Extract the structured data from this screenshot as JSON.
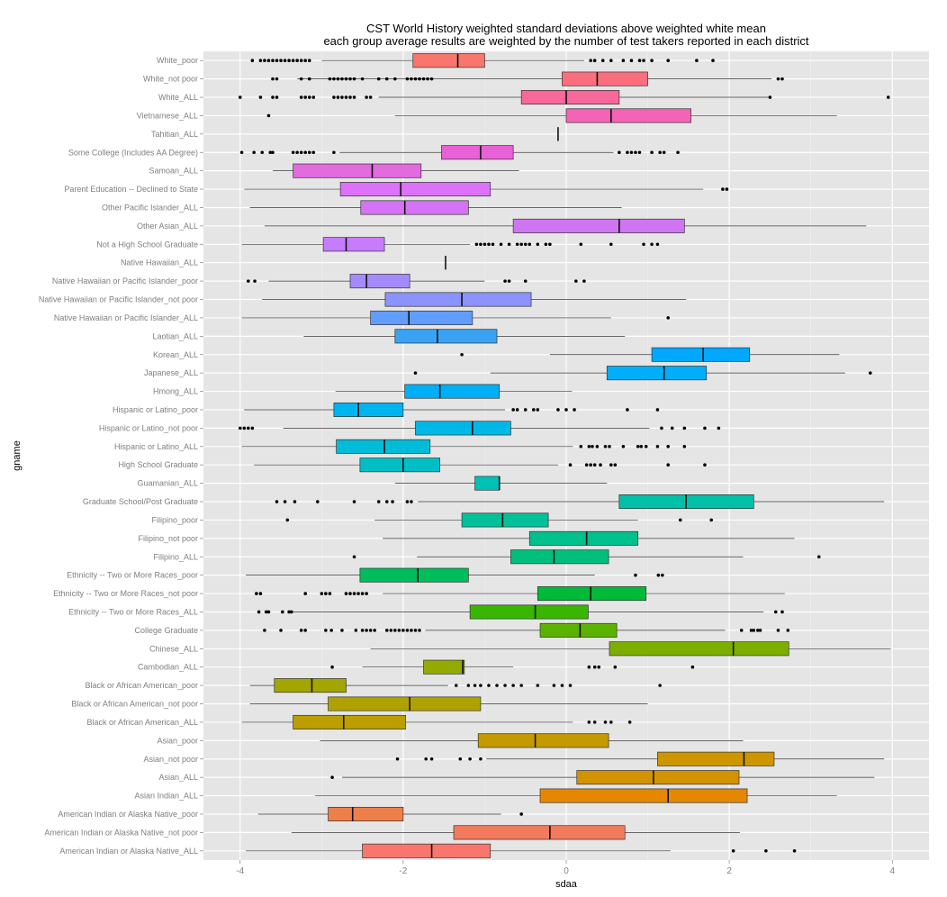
{
  "chart_data": {
    "type": "box",
    "title": "CST World History weighted standard deviations above weighted white mean",
    "subtitle": "each group average results are weighted by the number of test takers reported in each district",
    "xlabel": "sdaa",
    "ylabel": "gname",
    "xlim": [
      -4.45,
      4.45
    ],
    "xticks": [
      -4,
      -2,
      0,
      2,
      4
    ],
    "grid": true,
    "legend": "none",
    "groups": [
      {
        "name": "White_poor",
        "color": "#F8766D",
        "whisker_low": -3.0,
        "q1": -1.88,
        "median": -1.33,
        "q3": -1.0,
        "whisker_high": 0.22,
        "outliers": [
          -3.85,
          -3.75,
          -3.7,
          -3.65,
          -3.6,
          -3.55,
          -3.5,
          -3.45,
          -3.4,
          -3.35,
          -3.3,
          -3.25,
          -3.2,
          -3.15,
          0.3,
          0.35,
          0.45,
          0.55,
          0.7,
          0.8,
          0.9,
          0.95,
          1.05,
          1.25,
          1.6,
          1.8
        ]
      },
      {
        "name": "White_not poor",
        "color": "#FA6E7E",
        "whisker_low": -3.3,
        "q1": -0.05,
        "median": 0.38,
        "q3": 1.0,
        "whisker_high": 2.52,
        "outliers": [
          -3.6,
          -3.55,
          -3.25,
          -3.15,
          -2.9,
          -2.85,
          -2.8,
          -2.75,
          -2.7,
          -2.65,
          -2.6,
          -2.5,
          -2.3,
          -2.2,
          -2.1,
          -1.95,
          -1.9,
          -1.85,
          -1.8,
          -1.75,
          -1.7,
          -1.65,
          2.6,
          2.65
        ]
      },
      {
        "name": "White_ALL",
        "color": "#F8679A",
        "whisker_low": -2.3,
        "q1": -0.55,
        "median": 0.0,
        "q3": 0.65,
        "whisker_high": 2.48,
        "outliers": [
          -4.0,
          -3.75,
          -3.6,
          -3.55,
          -3.25,
          -3.2,
          -3.15,
          -3.1,
          -2.85,
          -2.8,
          -2.75,
          -2.7,
          -2.65,
          -2.6,
          -2.45,
          -2.4,
          2.5,
          3.95
        ]
      },
      {
        "name": "Vietnamese_ALL",
        "color": "#F463B5",
        "whisker_low": -2.1,
        "q1": 0.0,
        "median": 0.55,
        "q3": 1.53,
        "whisker_high": 3.32,
        "outliers": [
          -3.65
        ]
      },
      {
        "name": "Tahitian_ALL",
        "color": "#EC61CC",
        "whisker_low": -0.1,
        "q1": -0.1,
        "median": -0.1,
        "q3": -0.1,
        "whisker_high": -0.1,
        "outliers": []
      },
      {
        "name": "Some College (Includes AA Degree)",
        "color": "#E961D6",
        "whisker_low": -2.78,
        "q1": -1.53,
        "median": -1.05,
        "q3": -0.65,
        "whisker_high": 0.58,
        "outliers": [
          -3.98,
          -3.83,
          -3.73,
          -3.63,
          -3.6,
          -3.35,
          -3.3,
          -3.25,
          -3.2,
          -3.15,
          -3.1,
          -2.85,
          0.65,
          0.75,
          0.8,
          0.85,
          0.9,
          1.05,
          1.15,
          1.2,
          1.37
        ]
      },
      {
        "name": "Samoan_ALL",
        "color": "#E36BE0",
        "whisker_low": -3.6,
        "q1": -3.35,
        "median": -2.38,
        "q3": -1.78,
        "whisker_high": -0.58,
        "outliers": []
      },
      {
        "name": "Parent Education -- Declined to State",
        "color": "#DC71FA",
        "whisker_low": -3.95,
        "q1": -2.77,
        "median": -2.03,
        "q3": -0.93,
        "whisker_high": 1.68,
        "outliers": [
          1.92,
          1.97
        ]
      },
      {
        "name": "Other Pacific Islander_ALL",
        "color": "#D672F5",
        "whisker_low": -3.88,
        "q1": -2.52,
        "median": -1.98,
        "q3": -1.2,
        "whisker_high": 0.68,
        "outliers": []
      },
      {
        "name": "Other Asian_ALL",
        "color": "#D075F2",
        "whisker_low": -3.7,
        "q1": -0.65,
        "median": 0.65,
        "q3": 1.45,
        "whisker_high": 3.68,
        "outliers": []
      },
      {
        "name": "Not a High School Graduate",
        "color": "#C77CFF",
        "whisker_low": -3.98,
        "q1": -2.98,
        "median": -2.7,
        "q3": -2.23,
        "whisker_high": -1.18,
        "outliers": [
          -1.1,
          -1.05,
          -1.0,
          -0.95,
          -0.9,
          -0.8,
          -0.7,
          -0.6,
          -0.55,
          -0.5,
          -0.45,
          -0.35,
          -0.25,
          -0.2,
          0.18,
          0.55,
          0.95,
          1.05,
          1.12
        ]
      },
      {
        "name": "Native Hawaiian_ALL",
        "color": "#B983FF",
        "whisker_low": -1.48,
        "q1": -1.48,
        "median": -1.48,
        "q3": -1.48,
        "whisker_high": -1.48,
        "outliers": []
      },
      {
        "name": "Native Hawaiian or Pacific Islander_poor",
        "color": "#A58AFF",
        "whisker_low": -3.65,
        "q1": -2.65,
        "median": -2.45,
        "q3": -1.92,
        "whisker_high": -1.0,
        "outliers": [
          -3.9,
          -3.82,
          -0.75,
          -0.7,
          -0.5,
          0.12,
          0.22
        ]
      },
      {
        "name": "Native Hawaiian or Pacific Islander_not poor",
        "color": "#8B93FF",
        "whisker_low": -3.73,
        "q1": -2.22,
        "median": -1.28,
        "q3": -0.43,
        "whisker_high": 1.47,
        "outliers": []
      },
      {
        "name": "Native Hawaiian or Pacific Islander_ALL",
        "color": "#619CFF",
        "whisker_low": -3.98,
        "q1": -2.4,
        "median": -1.93,
        "q3": -1.15,
        "whisker_high": 0.55,
        "outliers": [
          1.25
        ]
      },
      {
        "name": "Laotian_ALL",
        "color": "#3AA2F2",
        "whisker_low": -3.22,
        "q1": -2.1,
        "median": -1.58,
        "q3": -0.85,
        "whisker_high": 0.72,
        "outliers": []
      },
      {
        "name": "Korean_ALL",
        "color": "#00A8FF",
        "whisker_low": -0.2,
        "q1": 1.05,
        "median": 1.68,
        "q3": 2.25,
        "whisker_high": 3.35,
        "outliers": [
          -1.28
        ]
      },
      {
        "name": "Japanese_ALL",
        "color": "#00AEF9",
        "whisker_low": -0.93,
        "q1": 0.5,
        "median": 1.2,
        "q3": 1.72,
        "whisker_high": 3.42,
        "outliers": [
          -1.85,
          3.73
        ]
      },
      {
        "name": "Hmong_ALL",
        "color": "#00B0F6",
        "whisker_low": -2.83,
        "q1": -1.98,
        "median": -1.55,
        "q3": -0.82,
        "whisker_high": 0.07,
        "outliers": []
      },
      {
        "name": "Hispanic or Latino_poor",
        "color": "#00B4EF",
        "whisker_low": -3.95,
        "q1": -2.85,
        "median": -2.55,
        "q3": -2.0,
        "whisker_high": -0.75,
        "outliers": [
          -0.65,
          -0.6,
          -0.5,
          -0.4,
          -0.35,
          -0.1,
          0.0,
          0.1,
          0.75,
          1.12
        ]
      },
      {
        "name": "Hispanic or Latino_not poor",
        "color": "#00B8E7",
        "whisker_low": -3.47,
        "q1": -1.85,
        "median": -1.15,
        "q3": -0.68,
        "whisker_high": 1.02,
        "outliers": [
          -4.0,
          -3.95,
          -3.9,
          -3.85,
          1.17,
          1.3,
          1.45,
          1.7,
          1.87
        ]
      },
      {
        "name": "Hispanic or Latino_ALL",
        "color": "#00BCD8",
        "whisker_low": -3.98,
        "q1": -2.82,
        "median": -2.23,
        "q3": -1.67,
        "whisker_high": 0.08,
        "outliers": [
          0.18,
          0.28,
          0.32,
          0.38,
          0.48,
          0.53,
          0.7,
          0.88,
          0.92,
          0.98,
          1.12,
          1.25,
          1.45
        ]
      },
      {
        "name": "High School Graduate",
        "color": "#00BFC4",
        "whisker_low": -3.83,
        "q1": -2.53,
        "median": -2.0,
        "q3": -1.55,
        "whisker_high": -0.1,
        "outliers": [
          0.05,
          0.25,
          0.3,
          0.35,
          0.42,
          0.55,
          0.6,
          1.25,
          1.7
        ]
      },
      {
        "name": "Guamanian_ALL",
        "color": "#00C1B5",
        "whisker_low": -2.1,
        "q1": -1.12,
        "median": -0.82,
        "q3": -0.82,
        "whisker_high": 0.5,
        "outliers": []
      },
      {
        "name": "Graduate School/Post Graduate",
        "color": "#00C1A8",
        "whisker_low": -1.82,
        "q1": 0.65,
        "median": 1.47,
        "q3": 2.3,
        "whisker_high": 3.9,
        "outliers": [
          -3.55,
          -3.45,
          -3.33,
          -3.05,
          -2.6,
          -2.3,
          -2.2,
          -2.13,
          -1.95,
          -1.9
        ]
      },
      {
        "name": "Filipino_poor",
        "color": "#00C19A",
        "whisker_low": -2.35,
        "q1": -1.28,
        "median": -0.78,
        "q3": -0.22,
        "whisker_high": 0.88,
        "outliers": [
          -3.42,
          1.4,
          1.78
        ]
      },
      {
        "name": "Filipino_not poor",
        "color": "#00C08D",
        "whisker_low": -2.25,
        "q1": -0.45,
        "median": 0.25,
        "q3": 0.88,
        "whisker_high": 2.8,
        "outliers": []
      },
      {
        "name": "Filipino_ALL",
        "color": "#00BF7D",
        "whisker_low": -1.83,
        "q1": -0.68,
        "median": -0.15,
        "q3": 0.52,
        "whisker_high": 2.17,
        "outliers": [
          -2.6,
          3.1
        ]
      },
      {
        "name": "Ethnicity -- Two or More Races_poor",
        "color": "#00BD5C",
        "whisker_low": -3.93,
        "q1": -2.53,
        "median": -1.82,
        "q3": -1.2,
        "whisker_high": 0.35,
        "outliers": [
          0.85,
          1.13,
          1.18
        ]
      },
      {
        "name": "Ethnicity -- Two or More Races_not poor",
        "color": "#00BA38",
        "whisker_low": -2.25,
        "q1": -0.35,
        "median": 0.3,
        "q3": 0.98,
        "whisker_high": 2.68,
        "outliers": [
          -3.8,
          -3.75,
          -3.2,
          -3.0,
          -2.95,
          -2.9,
          -2.7,
          -2.65,
          -2.6,
          -2.55,
          -2.5,
          -2.45
        ]
      },
      {
        "name": "Ethnicity -- Two or More Races_ALL",
        "color": "#39B600",
        "whisker_low": -3.35,
        "q1": -1.18,
        "median": -0.38,
        "q3": 0.27,
        "whisker_high": 2.42,
        "outliers": [
          -3.77,
          -3.68,
          -3.65,
          -3.48,
          -3.4,
          -3.37,
          2.57,
          2.65
        ]
      },
      {
        "name": "College Graduate",
        "color": "#5BB300",
        "whisker_low": -1.73,
        "q1": -0.32,
        "median": 0.17,
        "q3": 0.62,
        "whisker_high": 1.95,
        "outliers": [
          -3.7,
          -3.5,
          -3.25,
          -3.2,
          -2.95,
          -2.88,
          -2.75,
          -2.58,
          -2.5,
          -2.45,
          -2.4,
          -2.35,
          -2.2,
          -2.15,
          -2.1,
          -2.05,
          -2.0,
          -1.95,
          -1.9,
          -1.85,
          -1.8,
          2.15,
          2.27,
          2.3,
          2.35,
          2.38,
          2.6,
          2.72
        ]
      },
      {
        "name": "Chinese_ALL",
        "color": "#7CAE00",
        "whisker_low": -2.4,
        "q1": 0.53,
        "median": 2.05,
        "q3": 2.73,
        "whisker_high": 3.98,
        "outliers": []
      },
      {
        "name": "Cambodian_ALL",
        "color": "#94AA00",
        "whisker_low": -2.5,
        "q1": -1.75,
        "median": -1.27,
        "q3": -1.25,
        "whisker_high": -0.65,
        "outliers": [
          -2.87,
          0.28,
          0.35,
          0.4,
          0.6,
          1.55
        ]
      },
      {
        "name": "Black or African American_poor",
        "color": "#A3A500",
        "whisker_low": -3.88,
        "q1": -3.58,
        "median": -3.12,
        "q3": -2.7,
        "whisker_high": -1.45,
        "outliers": [
          -1.35,
          -1.2,
          -1.12,
          -1.05,
          -0.95,
          -0.85,
          -0.75,
          -0.65,
          -0.55,
          -0.35,
          -0.15,
          -0.05,
          0.05,
          1.15
        ]
      },
      {
        "name": "Black or African American_not poor",
        "color": "#AFA200",
        "whisker_low": -3.88,
        "q1": -2.92,
        "median": -1.92,
        "q3": -1.05,
        "whisker_high": 1.0,
        "outliers": []
      },
      {
        "name": "Black or African American_ALL",
        "color": "#BB9E00",
        "whisker_low": -3.98,
        "q1": -3.35,
        "median": -2.73,
        "q3": -1.97,
        "whisker_high": 0.08,
        "outliers": [
          0.28,
          0.35,
          0.48,
          0.55,
          0.78
        ]
      },
      {
        "name": "Asian_poor",
        "color": "#C49A00",
        "whisker_low": -3.02,
        "q1": -1.08,
        "median": -0.38,
        "q3": 0.52,
        "whisker_high": 2.17,
        "outliers": []
      },
      {
        "name": "Asian_not poor",
        "color": "#CD9600",
        "whisker_low": -0.98,
        "q1": 1.12,
        "median": 2.18,
        "q3": 2.55,
        "whisker_high": 3.9,
        "outliers": [
          -2.07,
          -1.72,
          -1.65,
          -1.3,
          -1.18,
          -1.05
        ]
      },
      {
        "name": "Asian_ALL",
        "color": "#D39200",
        "whisker_low": -2.75,
        "q1": 0.13,
        "median": 1.07,
        "q3": 2.12,
        "whisker_high": 3.78,
        "outliers": [
          -2.87
        ]
      },
      {
        "name": "Asian Indian_ALL",
        "color": "#E58700",
        "whisker_low": -3.08,
        "q1": -0.32,
        "median": 1.25,
        "q3": 2.22,
        "whisker_high": 3.32,
        "outliers": []
      },
      {
        "name": "American Indian or Alaska Native_poor",
        "color": "#EF7F49",
        "whisker_low": -3.78,
        "q1": -2.92,
        "median": -2.62,
        "q3": -2.0,
        "whisker_high": -0.8,
        "outliers": [
          -0.55
        ]
      },
      {
        "name": "American Indian or Alaska Native_not poor",
        "color": "#F47A5E",
        "whisker_low": -3.37,
        "q1": -1.38,
        "median": -0.2,
        "q3": 0.72,
        "whisker_high": 2.13,
        "outliers": []
      },
      {
        "name": "American Indian or Alaska Native_ALL",
        "color": "#F8766D",
        "whisker_low": -3.93,
        "q1": -2.5,
        "median": -1.65,
        "q3": -0.93,
        "whisker_high": 1.28,
        "outliers": [
          2.05,
          2.45,
          2.8
        ]
      }
    ]
  }
}
